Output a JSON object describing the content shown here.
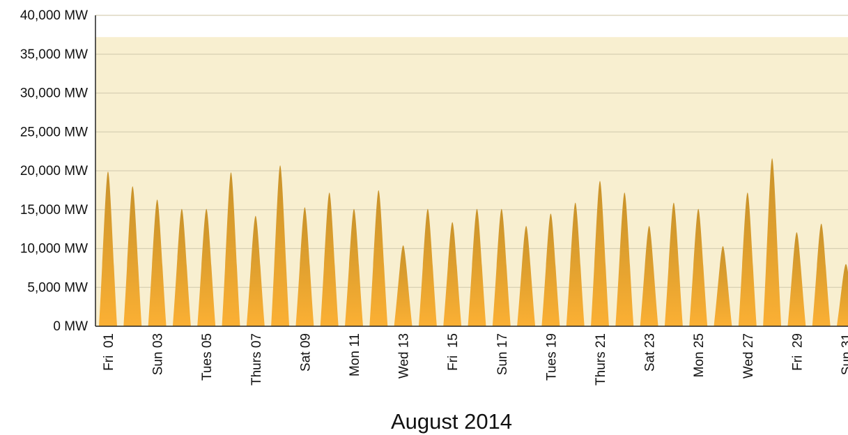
{
  "chart_data": {
    "type": "area",
    "title": "",
    "xlabel": "August 2014",
    "ylabel": "",
    "ylim": [
      0,
      40000
    ],
    "y_ticks": [
      0,
      5000,
      10000,
      15000,
      20000,
      25000,
      30000,
      35000,
      40000
    ],
    "y_tick_labels": [
      "0 MW",
      "5,000 MW",
      "10,000 MW",
      "15,000 MW",
      "20,000 MW",
      "25,000 MW",
      "30,000 MW",
      "35,000 MW",
      "40,000 MW"
    ],
    "x_tick_labels": [
      "Fri  01",
      "Sun 03",
      "Tues 05",
      "Thurs 07",
      "Sat 09",
      "Mon 11",
      "Wed 13",
      "Fri  15",
      "Sun 17",
      "Tues 19",
      "Thurs 21",
      "Sat 23",
      "Mon 25",
      "Wed 27",
      "Fri  29",
      "Sun 31"
    ],
    "x_tick_days": [
      1,
      3,
      5,
      7,
      9,
      11,
      13,
      15,
      17,
      19,
      21,
      23,
      25,
      27,
      29,
      31
    ],
    "band_max": 37200,
    "grid": true,
    "series": [
      {
        "days": [
          1,
          2,
          3,
          4,
          5,
          6,
          7,
          8,
          9,
          10,
          11,
          12,
          13,
          14,
          15,
          16,
          17,
          18,
          19,
          20,
          21,
          22,
          23,
          24,
          25,
          26,
          27,
          28,
          29,
          30,
          31
        ],
        "values": [
          19900,
          18000,
          16300,
          15100,
          15100,
          19800,
          14200,
          20700,
          15300,
          17200,
          15100,
          17500,
          10400,
          15100,
          13400,
          15100,
          15100,
          12900,
          14500,
          15900,
          18700,
          17200,
          12900,
          15900,
          15100,
          10300,
          17200,
          21600,
          12100,
          13200,
          8000
        ]
      }
    ],
    "colors": {
      "band": "#f8efd0",
      "grid": "#d7cfb3",
      "fill_top": "#c8922a",
      "fill_bottom": "#fbb034"
    }
  }
}
